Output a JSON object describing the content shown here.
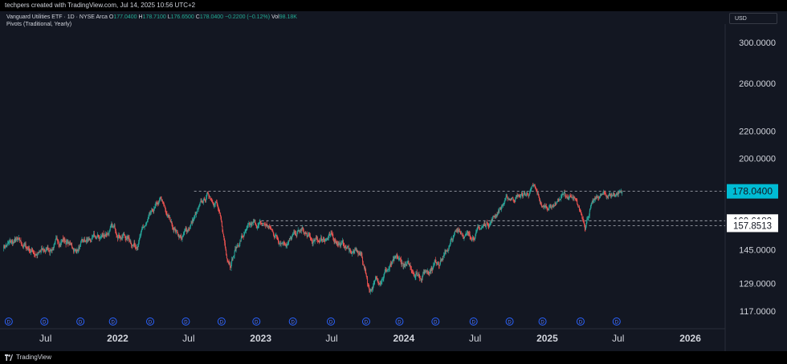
{
  "header": {
    "attribution": "techpers created with TradingView.com, Jul 14, 2025 10:56 UTC+2"
  },
  "legend": {
    "title": "Vanguard Utilities ETF · 1D · NYSE Arca",
    "open_label": "O",
    "open": "177.0400",
    "high_label": "H",
    "high": "178.7100",
    "low_label": "L",
    "low": "176.6500",
    "close_label": "C",
    "close": "178.0400",
    "change": "−0.2200 (−0.12%)",
    "vol_label": "Vol",
    "vol": "98.18K",
    "indicator": "Pivots (Traditional, Yearly)"
  },
  "currency": "USD",
  "footer": {
    "brand": "TradingView"
  },
  "colors": {
    "background": "#131722",
    "up": "#26a69a",
    "down": "#ef5350",
    "price_label": "#00bcd4",
    "pivot_line": "#b2b5be"
  },
  "chart_data": {
    "type": "candlestick",
    "y_scale": "log",
    "ylim": [
      110,
      320
    ],
    "y_ticks": [
      "300.0000",
      "260.0000",
      "220.0000",
      "200.0000",
      "145.0000",
      "129.0000",
      "117.0000"
    ],
    "y_tick_values": [
      300,
      260,
      220,
      200,
      145,
      129,
      117
    ],
    "x_ticks": [
      "Jul",
      "2022",
      "Jul",
      "2023",
      "Jul",
      "2024",
      "Jul",
      "2025",
      "Jul",
      "2026"
    ],
    "x_tick_dates": [
      "2021-07-01",
      "2022-01-01",
      "2022-07-01",
      "2023-01-01",
      "2023-07-01",
      "2024-01-01",
      "2024-07-01",
      "2025-01-01",
      "2025-07-01",
      "2026-01-01"
    ],
    "bold_ticks": [
      "2022",
      "2023",
      "2024",
      "2025",
      "2026"
    ],
    "xlim": [
      "2021-03-15",
      "2026-03-31"
    ],
    "last_price": {
      "value": 178.04,
      "label": "178.0400"
    },
    "pivot_levels": [
      {
        "value": 178.04,
        "label": "178.0400",
        "start": "2022-07-15"
      },
      {
        "value": 160.6182,
        "label": "160.6182",
        "start": "2023-01-03"
      },
      {
        "value": 157.8513,
        "label": "157.8513",
        "start": "2023-01-03"
      }
    ],
    "dividend_marker_label": "D",
    "dividend_dates": [
      "2021-03-29",
      "2021-06-28",
      "2021-09-28",
      "2021-12-20",
      "2022-03-25",
      "2022-06-24",
      "2022-09-23",
      "2022-12-21",
      "2023-03-24",
      "2023-06-29",
      "2023-09-27",
      "2023-12-21",
      "2024-03-22",
      "2024-06-27",
      "2024-09-27",
      "2024-12-20",
      "2025-03-27",
      "2025-06-27"
    ],
    "price_path": [
      [
        "2021-03-15",
        147
      ],
      [
        "2021-04-15",
        149
      ],
      [
        "2021-05-15",
        146
      ],
      [
        "2021-06-15",
        143
      ],
      [
        "2021-07-15",
        146
      ],
      [
        "2021-08-15",
        151
      ],
      [
        "2021-09-15",
        145
      ],
      [
        "2021-10-15",
        149
      ],
      [
        "2021-11-15",
        151
      ],
      [
        "2021-12-15",
        156
      ],
      [
        "2022-01-15",
        153
      ],
      [
        "2022-02-15",
        148
      ],
      [
        "2022-03-15",
        158
      ],
      [
        "2022-04-20",
        172
      ],
      [
        "2022-05-15",
        160
      ],
      [
        "2022-06-15",
        151
      ],
      [
        "2022-07-15",
        162
      ],
      [
        "2022-08-20",
        176
      ],
      [
        "2022-09-10",
        172
      ],
      [
        "2022-10-05",
        143
      ],
      [
        "2022-10-15",
        140
      ],
      [
        "2022-11-15",
        152
      ],
      [
        "2022-12-15",
        158
      ],
      [
        "2023-01-15",
        158
      ],
      [
        "2023-02-15",
        151
      ],
      [
        "2023-03-15",
        150
      ],
      [
        "2023-04-15",
        155
      ],
      [
        "2023-05-15",
        148
      ],
      [
        "2023-06-15",
        152
      ],
      [
        "2023-07-15",
        150
      ],
      [
        "2023-08-15",
        145
      ],
      [
        "2023-09-15",
        142
      ],
      [
        "2023-10-05",
        127
      ],
      [
        "2023-10-25",
        130
      ],
      [
        "2023-11-15",
        135
      ],
      [
        "2023-12-15",
        139
      ],
      [
        "2024-01-15",
        136
      ],
      [
        "2024-02-15",
        133
      ],
      [
        "2024-03-15",
        138
      ],
      [
        "2024-04-15",
        143
      ],
      [
        "2024-05-20",
        156
      ],
      [
        "2024-06-15",
        152
      ],
      [
        "2024-07-15",
        156
      ],
      [
        "2024-08-15",
        162
      ],
      [
        "2024-09-15",
        172
      ],
      [
        "2024-10-15",
        175
      ],
      [
        "2024-11-10",
        176
      ],
      [
        "2024-11-28",
        180
      ],
      [
        "2024-12-20",
        168
      ],
      [
        "2025-01-15",
        170
      ],
      [
        "2025-02-15",
        176
      ],
      [
        "2025-03-10",
        172
      ],
      [
        "2025-04-08",
        159
      ],
      [
        "2025-04-20",
        168
      ],
      [
        "2025-05-15",
        175
      ],
      [
        "2025-06-15",
        176
      ],
      [
        "2025-07-11",
        178.04
      ]
    ]
  }
}
